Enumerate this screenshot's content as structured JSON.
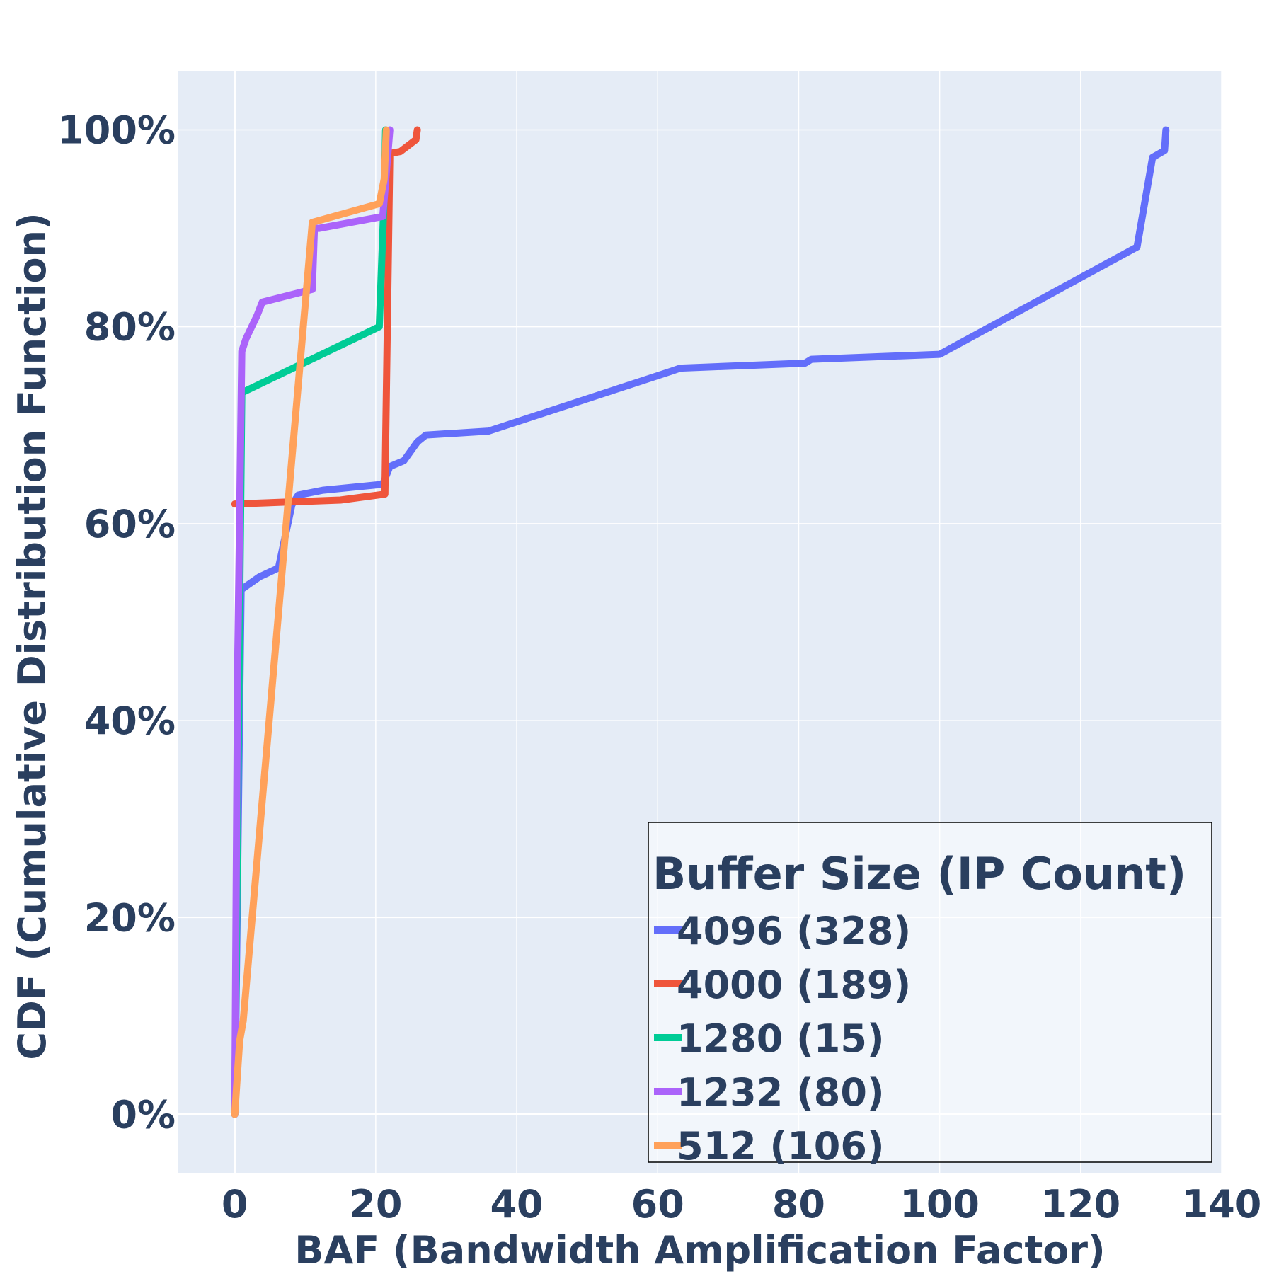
{
  "chart_data": {
    "type": "line",
    "line_shape": "step",
    "xlabel": "BAF (Bandwidth Amplification Factor)",
    "ylabel": "CDF (Cumulative Distribution Function)",
    "xlim": [
      -8,
      140
    ],
    "ylim": [
      -0.06,
      1.06
    ],
    "x_ticks": [
      0,
      20,
      40,
      60,
      80,
      100,
      120,
      140
    ],
    "y_ticks": [
      0,
      0.2,
      0.4,
      0.6,
      0.8,
      1.0
    ],
    "y_tick_labels": [
      "0%",
      "20%",
      "40%",
      "60%",
      "80%",
      "100%"
    ],
    "grid": true,
    "background_color": "#e5ecf6",
    "legend": {
      "title": "Buffer Size (IP Count)",
      "position": "bottom-right"
    },
    "series": [
      {
        "name": "4096 (328)",
        "color": "#636efa",
        "x": [
          0,
          0.9,
          3.5,
          4.4,
          6.2,
          8.1,
          9.0,
          12.5,
          21.0,
          22.0,
          24.0,
          25.9,
          27.1,
          36.0,
          62.0,
          63.2,
          80.9,
          81.8,
          100.0,
          128.0,
          130.2,
          131.9,
          132.1
        ],
        "y": [
          0,
          0.533,
          0.546,
          0.549,
          0.555,
          0.619,
          0.629,
          0.634,
          0.64,
          0.658,
          0.664,
          0.683,
          0.69,
          0.694,
          0.755,
          0.758,
          0.763,
          0.767,
          0.772,
          0.881,
          0.972,
          0.979,
          1.0
        ]
      },
      {
        "name": "4000 (189)",
        "color": "#ef553b",
        "x": [
          0,
          15.0,
          21.3,
          22.0,
          23.5,
          25.7,
          25.9
        ],
        "y": [
          0.62,
          0.624,
          0.63,
          0.976,
          0.978,
          0.99,
          1.0
        ]
      },
      {
        "name": "1280 (15)",
        "color": "#00cc96",
        "x": [
          0,
          1.0,
          20.5,
          21.2,
          21.4
        ],
        "y": [
          0,
          0.733,
          0.8,
          0.933,
          1.0
        ]
      },
      {
        "name": "1232 (80)",
        "color": "#ab63fa",
        "x": [
          0,
          0.4,
          1.0,
          1.6,
          3.2,
          3.9,
          11.0,
          11.3,
          12.0,
          21.0,
          22.0
        ],
        "y": [
          0,
          0.45,
          0.775,
          0.788,
          0.812,
          0.825,
          0.838,
          0.9,
          0.9,
          0.912,
          1.0
        ]
      },
      {
        "name": "512 (106)",
        "color": "#ffa15a",
        "x": [
          0,
          0.7,
          1.2,
          11.0,
          20.5,
          21.2,
          21.5
        ],
        "y": [
          0,
          0.075,
          0.095,
          0.906,
          0.925,
          0.95,
          1.0
        ]
      }
    ]
  }
}
